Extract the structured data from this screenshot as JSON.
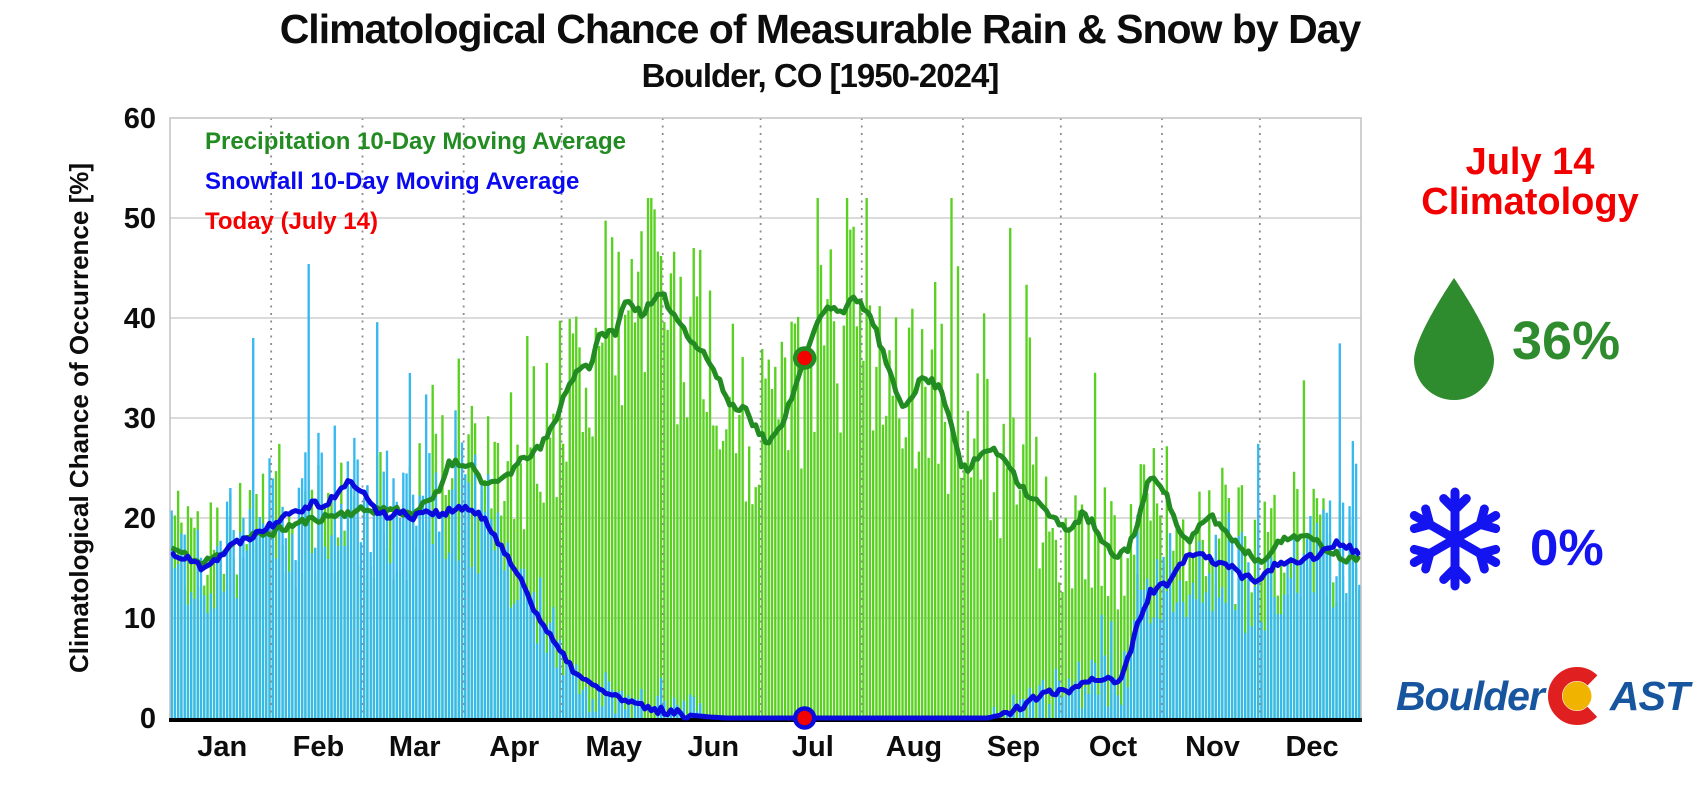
{
  "title": "Climatological Chance of Measurable Rain & Snow by Day",
  "subtitle": "Boulder, CO [1950-2024]",
  "y_axis_label": "Climatological Chance of Occurrence [%]",
  "legend": {
    "precip": "Precipitation 10-Day Moving Average",
    "snow": "Snowfall 10-Day Moving Average",
    "today": "Today (July 14)"
  },
  "panel": {
    "heading_line1": "July 14",
    "heading_line2": "Climatology",
    "precip_value": "36%",
    "snow_value": "0%",
    "logo_left": "Boulder",
    "logo_right": "AST",
    "droplet_icon": "rain-droplet",
    "snowflake_icon": "snowflake",
    "logo_mark": "colorado-c"
  },
  "colors": {
    "precip_bar": "#58d121",
    "snow_bar": "#35b9ef",
    "precip_line": "#228B22",
    "snow_line": "#0b0bdd",
    "today_marker": "#f40000",
    "grid_h": "#cfcfcf",
    "grid_v_dotted": "#8c8c8c",
    "axis_bottom": "#000000",
    "plot_border": "#c4c4c4",
    "panel_red": "#f20000",
    "droplet_green": "#2e8b2e",
    "snow_blue": "#1414f0",
    "logo_blue": "#18559f",
    "logo_c_red": "#e02020",
    "logo_c_gold": "#f0b400"
  },
  "chart_data": {
    "type": "bar+line",
    "title": "Climatological Chance of Measurable Rain & Snow by Day",
    "subtitle": "Boulder, CO [1950-2024]",
    "ylabel": "Climatological Chance of Occurrence [%]",
    "ylim": [
      0,
      60
    ],
    "y_ticks": [
      0,
      10,
      20,
      30,
      40,
      50,
      60
    ],
    "x_tick_labels": [
      "Jan",
      "Feb",
      "Mar",
      "Apr",
      "May",
      "Jun",
      "Jul",
      "Aug",
      "Sep",
      "Oct",
      "Nov",
      "Dec"
    ],
    "month_boundaries_day": [
      31,
      59,
      90,
      120,
      151,
      181,
      212,
      243,
      273,
      304,
      334
    ],
    "month_center_day": [
      16,
      45.5,
      75,
      105.5,
      136,
      166.5,
      197,
      228,
      258.5,
      289,
      319.5,
      350
    ],
    "days_per_year": 365,
    "grid": {
      "horizontal": "solid-light",
      "vertical": "dotted-month-boundaries"
    },
    "legend_position": "upper-left-text-only",
    "series": [
      {
        "name": "Precipitation 10-Day Moving Average",
        "type": "line",
        "anchors_day": [
          1,
          5,
          10,
          15,
          20,
          26,
          32,
          41,
          51,
          60,
          69,
          74,
          79,
          83,
          86,
          90,
          92,
          97,
          100,
          105,
          110,
          114,
          118,
          121,
          124,
          127,
          129,
          132,
          135,
          137,
          140,
          143,
          145,
          148,
          150,
          152,
          155,
          158,
          161,
          164,
          166,
          169,
          172,
          175,
          177,
          179,
          182,
          184,
          187,
          190,
          192,
          195,
          198,
          201,
          204,
          206,
          208,
          210,
          213,
          216,
          219,
          222,
          225,
          228,
          231,
          234,
          237,
          240,
          243,
          245,
          248,
          251,
          254,
          257,
          260,
          263,
          267,
          271,
          274,
          277,
          280,
          283,
          286,
          289,
          291,
          294,
          297,
          300,
          302,
          305,
          308,
          311,
          313,
          316,
          319,
          322,
          325,
          328,
          331,
          335,
          338,
          341,
          344,
          347,
          350,
          353,
          356,
          359,
          362,
          365
        ],
        "anchors_value": [
          17.0,
          16.3,
          15.4,
          16.2,
          17.6,
          18.2,
          18.6,
          19.6,
          20.3,
          20.8,
          20.9,
          20.4,
          21.4,
          22.6,
          25.7,
          25.3,
          25.6,
          23.4,
          23.3,
          24.7,
          26.2,
          27.0,
          29.3,
          32.0,
          34.0,
          35.5,
          35.0,
          38.0,
          38.8,
          38.2,
          42.0,
          41.0,
          40.5,
          41.3,
          42.1,
          42.0,
          40.3,
          39.0,
          37.5,
          36.5,
          35.5,
          33.5,
          31.5,
          30.7,
          31.4,
          29.5,
          28.2,
          27.4,
          28.7,
          31.2,
          33.0,
          36.0,
          38.8,
          40.7,
          41.3,
          40.6,
          41.2,
          41.8,
          41.2,
          39.5,
          36.5,
          33.4,
          31.2,
          32.4,
          34.0,
          33.6,
          32.8,
          29.4,
          25.4,
          24.6,
          26.0,
          26.9,
          26.5,
          25.8,
          23.9,
          22.5,
          21.4,
          19.9,
          19.2,
          19.0,
          20.3,
          19.6,
          17.6,
          16.5,
          16.2,
          17.0,
          19.4,
          23.2,
          24.3,
          23.0,
          20.2,
          18.0,
          17.5,
          19.1,
          20.3,
          19.4,
          18.2,
          17.4,
          16.4,
          15.6,
          16.9,
          17.6,
          18.1,
          18.3,
          17.9,
          17.3,
          16.8,
          16.2,
          15.8,
          16.3
        ]
      },
      {
        "name": "Snowfall 10-Day Moving Average",
        "type": "line",
        "anchors_day": [
          1,
          5,
          10,
          15,
          20,
          25,
          32,
          36,
          41,
          45,
          48,
          52,
          56,
          60,
          63,
          67,
          71,
          75,
          79,
          83,
          87,
          91,
          94,
          97,
          100,
          103,
          106,
          109,
          112,
          115,
          118,
          121,
          124,
          127,
          130,
          133,
          136,
          140,
          144,
          148,
          152,
          157,
          161,
          166,
          171,
          251,
          255,
          259,
          263,
          267,
          271,
          274,
          277,
          280,
          283,
          286,
          289,
          291,
          293,
          295,
          298,
          301,
          304,
          307,
          310,
          313,
          316,
          319,
          322,
          324,
          327,
          330,
          335,
          338,
          341,
          344,
          347,
          350,
          353,
          356,
          359,
          362,
          365
        ],
        "anchors_value": [
          16.5,
          16.0,
          15.2,
          16.0,
          17.4,
          18.2,
          19.4,
          20.6,
          21.0,
          21.6,
          21.2,
          22.6,
          23.7,
          22.4,
          20.9,
          20.3,
          20.5,
          20.2,
          20.8,
          20.4,
          20.7,
          21.0,
          20.6,
          19.6,
          18.2,
          16.8,
          14.9,
          13.2,
          11.1,
          9.2,
          7.6,
          6.1,
          4.9,
          3.9,
          3.2,
          2.8,
          2.3,
          1.7,
          1.2,
          0.9,
          0.7,
          0.4,
          0.25,
          0.1,
          0,
          0,
          0.3,
          0.8,
          1.5,
          2.3,
          2.5,
          2.6,
          2.9,
          3.6,
          3.9,
          4.0,
          3.9,
          3.7,
          4.6,
          6.8,
          10.3,
          12.6,
          13.2,
          13.4,
          15.3,
          16.2,
          16.4,
          16.1,
          15.3,
          15.6,
          14.6,
          14.0,
          13.9,
          15.0,
          15.3,
          15.5,
          15.8,
          16.1,
          16.5,
          17.0,
          17.5,
          17.0,
          16.6
        ]
      },
      {
        "name": "Daily chance of measurable precipitation",
        "type": "bar",
        "follows": "Precipitation 10-Day Moving Average",
        "note": "365 daily bars scattered around the 10-day moving average"
      },
      {
        "name": "Daily chance of measurable snowfall",
        "type": "bar",
        "follows": "Snowfall 10-Day Moving Average",
        "note": "365 daily bars scattered around the 10-day moving average; zero mid-June through early September"
      }
    ],
    "bar_noise": {
      "seed": 20240714,
      "amp_base": 2.0,
      "amp_scale": 0.25,
      "spike_prob": 0.045,
      "max": 52
    },
    "today": {
      "label": "Today (July 14)",
      "day": 195,
      "precip_pct": 36,
      "snow_pct": 0
    }
  }
}
